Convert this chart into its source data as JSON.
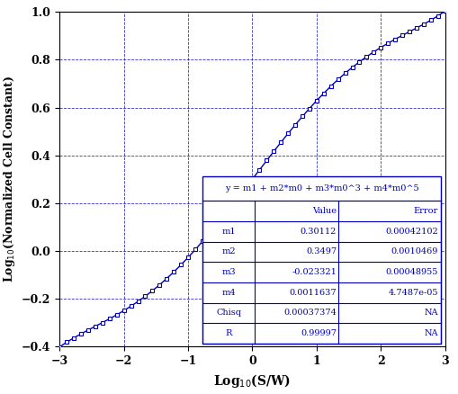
{
  "title": "",
  "xlabel": "Log$_{10}$(S/W)",
  "ylabel": "Log$_{10}$(Normalized Cell Constant)",
  "xlim": [
    -3,
    3
  ],
  "ylim": [
    -0.4,
    1.0
  ],
  "xticks": [
    -3,
    -2,
    -1,
    0,
    1,
    2,
    3
  ],
  "yticks": [
    -0.4,
    -0.2,
    0.0,
    0.2,
    0.4,
    0.6,
    0.8,
    1.0
  ],
  "m1": 0.30112,
  "m2": 0.3497,
  "m3": -0.023321,
  "m4": 0.0011637,
  "line_color": "#0000BB",
  "background_color": "#FFFFFF",
  "table_equation": "y = m1 + m2*m0 + m3*m0^3 + m4*m0^5",
  "table_rows": [
    [
      "",
      "Value",
      "Error"
    ],
    [
      "m1",
      "0.30112",
      "0.00042102"
    ],
    [
      "m2",
      "0.3497",
      "0.0010469"
    ],
    [
      "m3",
      "-0.023321",
      "0.00048955"
    ],
    [
      "m4",
      "0.0011637",
      "4.7487e-05"
    ],
    [
      "Chisq",
      "0.00037374",
      "NA"
    ],
    [
      "R",
      "0.99997",
      "NA"
    ]
  ],
  "n_pts": 55,
  "figsize": [
    5.1,
    4.38
  ],
  "dpi": 100
}
